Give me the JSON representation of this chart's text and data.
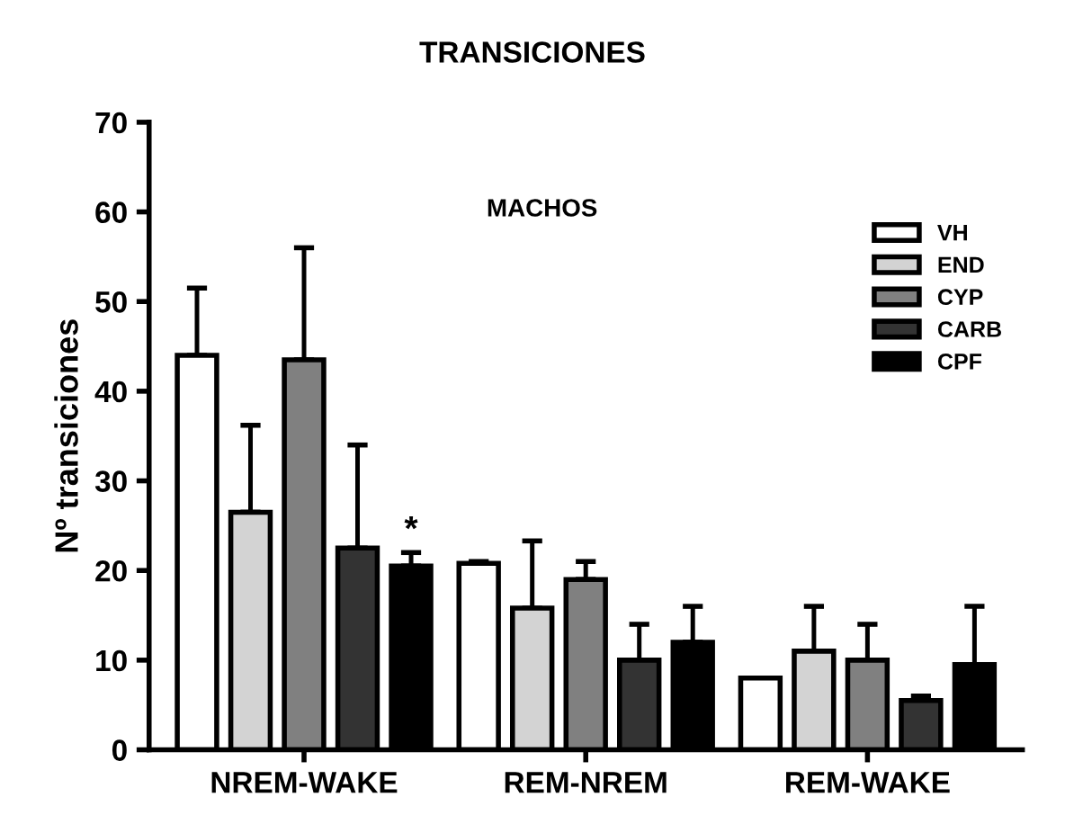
{
  "chart_data": {
    "type": "bar",
    "title": "TRANSICIONES",
    "ylabel": "Nº transiciones",
    "categories": [
      "NREM-WAKE",
      "REM-NREM",
      "REM-WAKE"
    ],
    "series": [
      {
        "name": "VH",
        "color": "#ffffff",
        "values": [
          44,
          20.8,
          8
        ],
        "errors": [
          [
            44,
            51.5
          ],
          [
            20.8,
            21
          ],
          null
        ]
      },
      {
        "name": "END",
        "color": "#d3d3d3",
        "values": [
          26.5,
          15.8,
          11
        ],
        "errors": [
          [
            26.5,
            36.2
          ],
          [
            15.8,
            23.3
          ],
          [
            11,
            16
          ]
        ]
      },
      {
        "name": "CYP",
        "color": "#808080",
        "values": [
          43.5,
          19,
          10
        ],
        "errors": [
          [
            43.5,
            56
          ],
          [
            19,
            21
          ],
          [
            10,
            14
          ]
        ]
      },
      {
        "name": "CARB",
        "color": "#333333",
        "values": [
          22.5,
          10,
          5.5
        ],
        "errors": [
          [
            22.5,
            34
          ],
          [
            10,
            14
          ],
          [
            5.5,
            6
          ]
        ]
      },
      {
        "name": "CPF",
        "color": "#000000",
        "values": [
          20.5,
          12,
          9.5
        ],
        "errors": [
          [
            20.5,
            22
          ],
          [
            12,
            16
          ],
          [
            9.5,
            16
          ]
        ]
      }
    ],
    "annotations": [
      "MACHOS",
      "*"
    ],
    "ylim": [
      0,
      70
    ],
    "yticks": [
      0,
      10,
      20,
      30,
      40,
      50,
      60,
      70
    ],
    "legend": "top right",
    "grid": false
  }
}
